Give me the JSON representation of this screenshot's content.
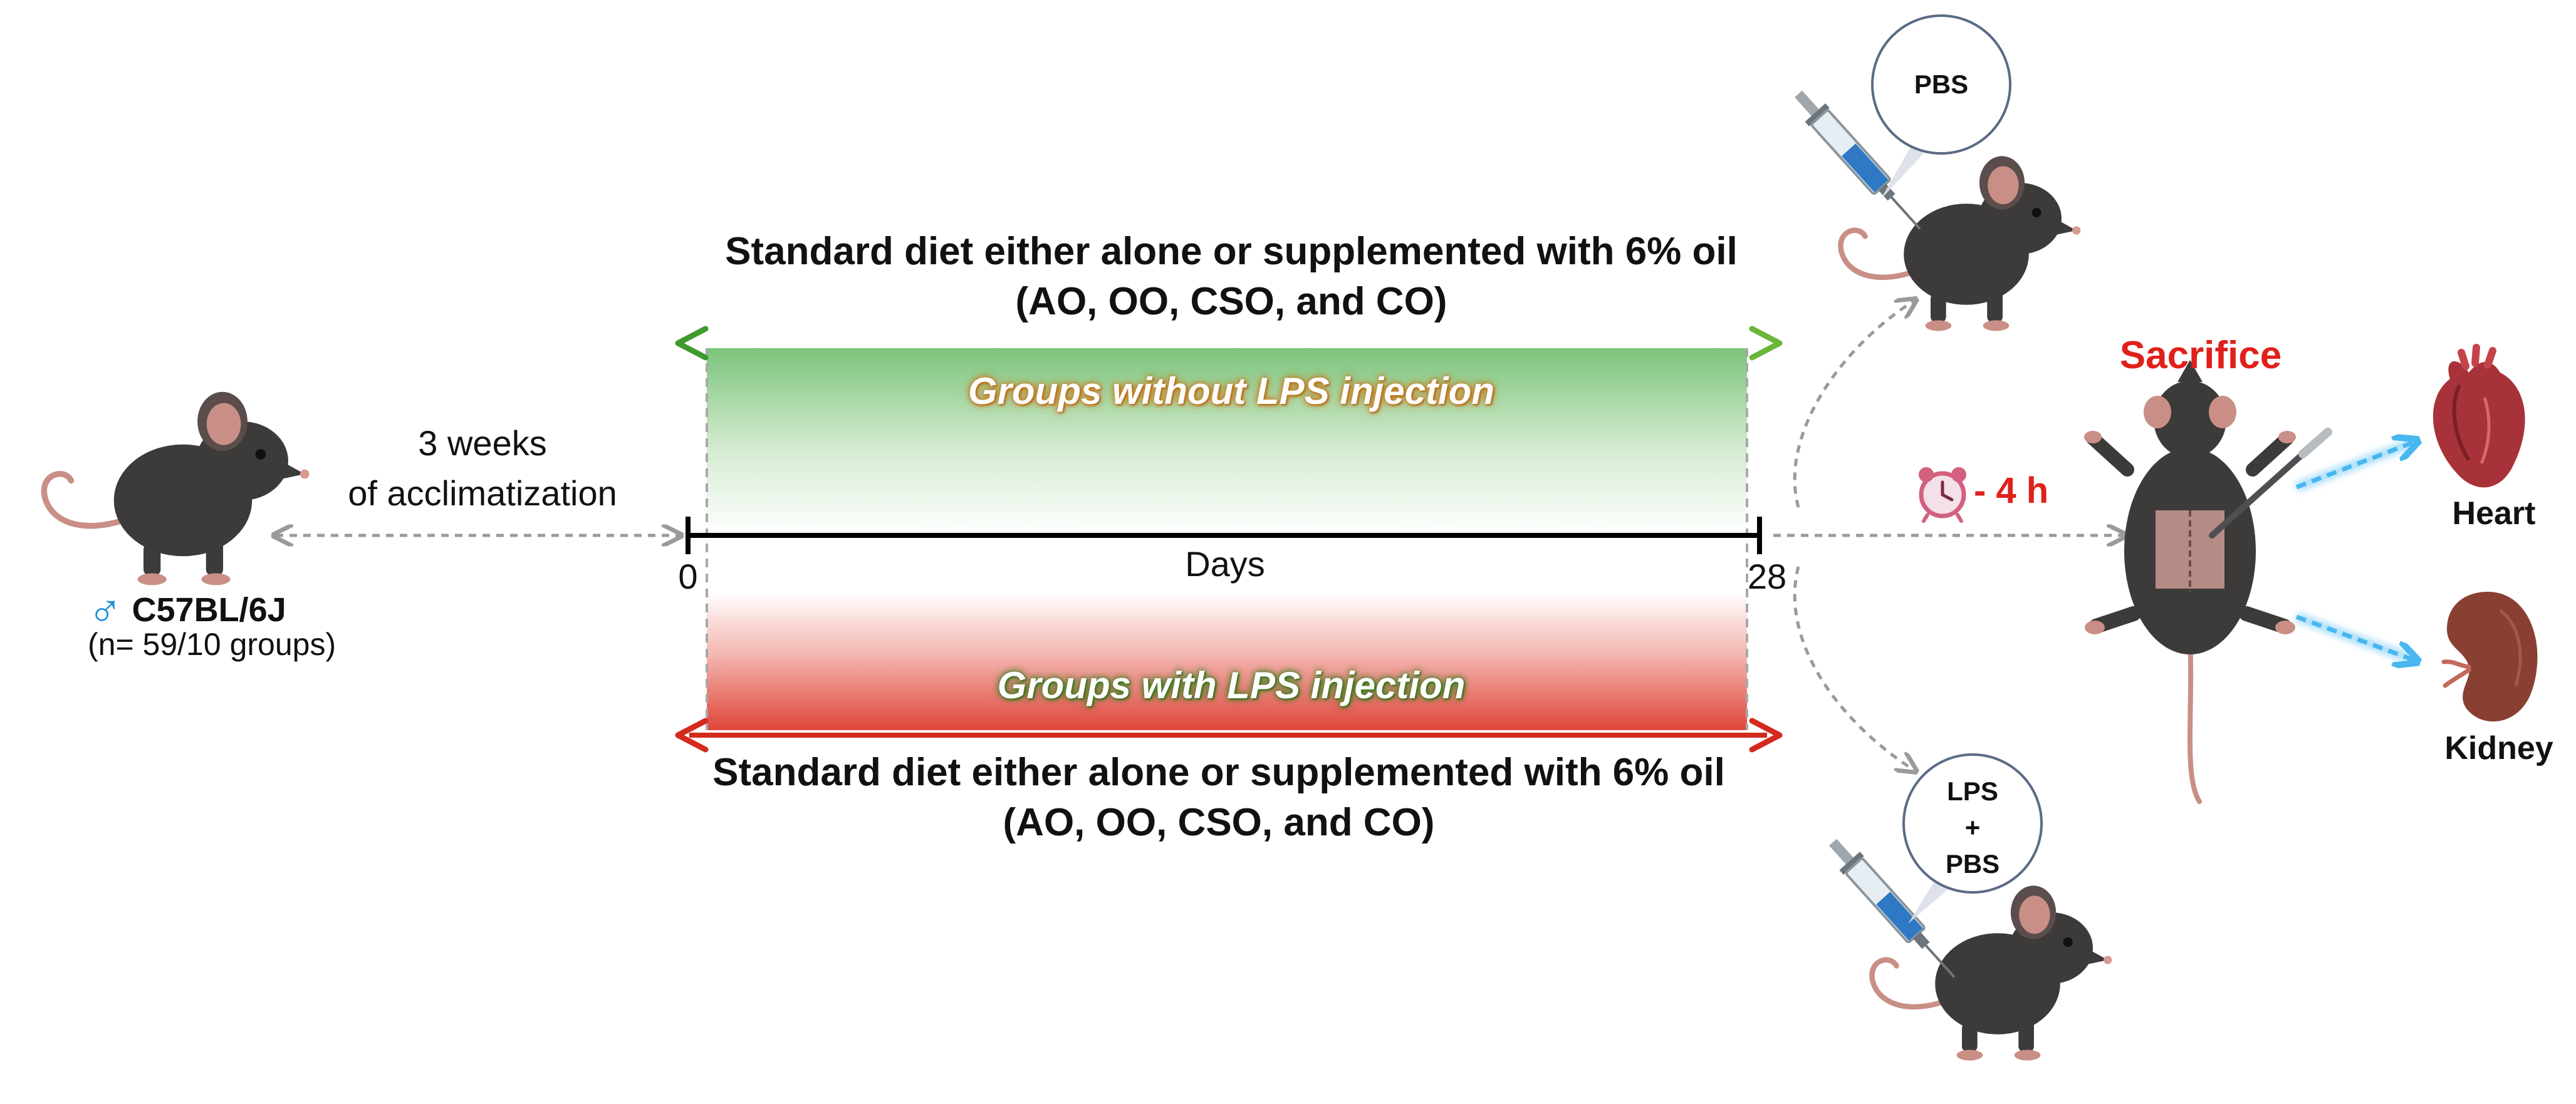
{
  "strain": {
    "symbol": "♂",
    "name": "C57BL/6J",
    "count": "(n= 59/10 groups)"
  },
  "acclimatization": {
    "line1": "3 weeks",
    "line2": "of acclimatization"
  },
  "timeline": {
    "start": "0",
    "end": "28",
    "axis_label": "Days"
  },
  "diet_top": {
    "line1": "Standard diet either alone or supplemented with 6% oil",
    "line2": "(AO, OO, CSO, and CO)",
    "band_label": "Groups without LPS injection"
  },
  "diet_bottom": {
    "line1": "Standard diet either alone or supplemented with 6% oil",
    "line2": "(AO, OO, CSO, and CO)",
    "band_label": "Groups with LPS injection"
  },
  "injection_top": {
    "bubble": "PBS"
  },
  "injection_bottom": {
    "bubble_line1": "LPS",
    "bubble_line2": "+",
    "bubble_line3": "PBS"
  },
  "timing": {
    "label": "- 4 h",
    "icon": "alarm-clock-icon"
  },
  "sacrifice": {
    "label": "Sacrifice"
  },
  "organs": {
    "heart": "Heart",
    "kidney": "Kidney"
  },
  "colors": {
    "green_band": "#7cc47a",
    "red_band": "#e0453a",
    "sacrifice_red": "#e0201a",
    "mouse_body": "#3d3a3a",
    "mouse_ear": "#c98f86",
    "strain_blue": "#1e8ed8",
    "organ_arrow": "#48b7f0"
  }
}
